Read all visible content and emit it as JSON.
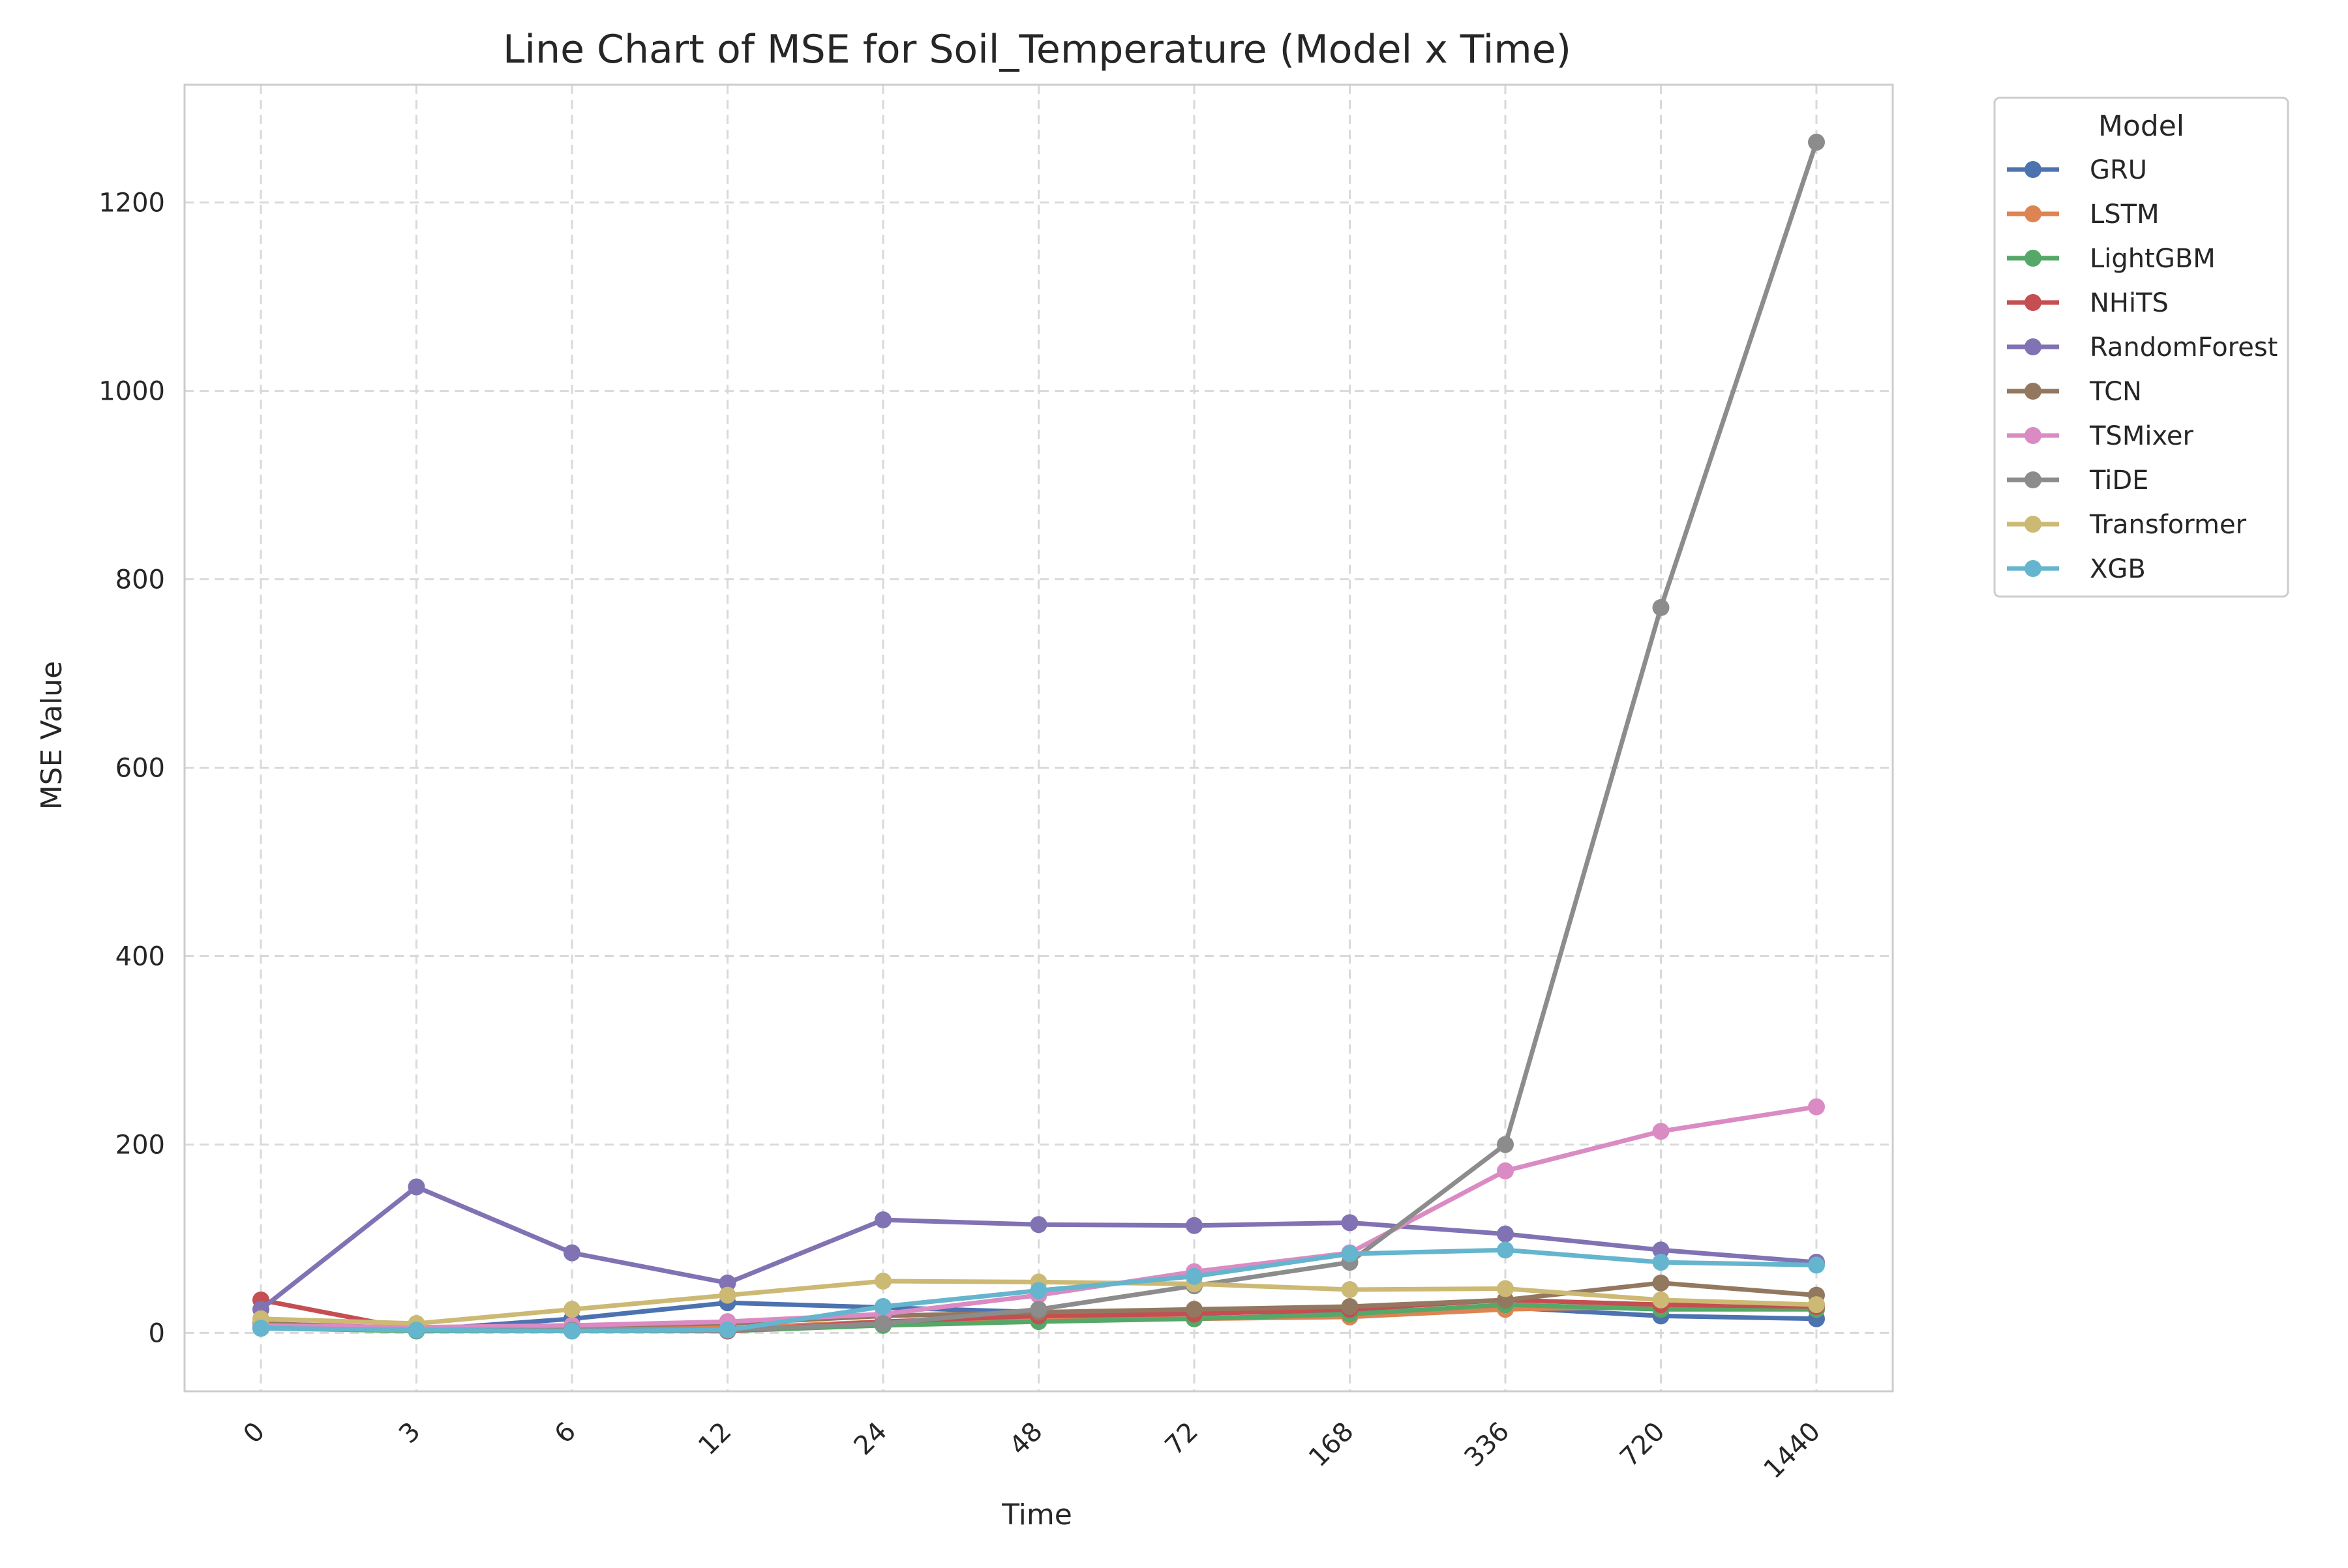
{
  "chart_data": {
    "type": "line",
    "title": "Line Chart of MSE for Soil_Temperature (Model x Time)",
    "xlabel": "Time",
    "ylabel": "MSE Value",
    "categories": [
      "0",
      "3",
      "6",
      "12",
      "24",
      "48",
      "72",
      "168",
      "336",
      "720",
      "1440"
    ],
    "ylim": [
      -62,
      1325
    ],
    "yticks": [
      0,
      200,
      400,
      600,
      800,
      1000,
      1200
    ],
    "grid": true,
    "legend": {
      "title": "Model",
      "placement": "outside-top-right"
    },
    "series": [
      {
        "name": "GRU",
        "color": "#4c72b0",
        "values": [
          8,
          3,
          15,
          32,
          27,
          22,
          22,
          22,
          27,
          18,
          15
        ]
      },
      {
        "name": "LSTM",
        "color": "#dd8452",
        "values": [
          10,
          4,
          5,
          5,
          12,
          14,
          15,
          17,
          25,
          28,
          30
        ]
      },
      {
        "name": "LightGBM",
        "color": "#55a868",
        "values": [
          5,
          2,
          2,
          2,
          8,
          12,
          15,
          20,
          30,
          25,
          25
        ]
      },
      {
        "name": "NHiTS",
        "color": "#c44e52",
        "values": [
          35,
          3,
          3,
          2,
          12,
          18,
          20,
          25,
          35,
          30,
          28
        ]
      },
      {
        "name": "RandomForest",
        "color": "#8172b3",
        "values": [
          25,
          155,
          85,
          53,
          120,
          115,
          114,
          117,
          105,
          88,
          75
        ]
      },
      {
        "name": "TCN",
        "color": "#937860",
        "values": [
          10,
          5,
          8,
          10,
          18,
          22,
          25,
          28,
          35,
          53,
          40
        ]
      },
      {
        "name": "TSMixer",
        "color": "#da8bc3",
        "values": [
          8,
          6,
          8,
          12,
          20,
          40,
          65,
          85,
          172,
          214,
          240
        ]
      },
      {
        "name": "TiDE",
        "color": "#8c8c8c",
        "values": [
          5,
          3,
          3,
          3,
          10,
          25,
          50,
          75,
          200,
          770,
          1264
        ]
      },
      {
        "name": "Transformer",
        "color": "#ccb974",
        "values": [
          15,
          10,
          25,
          40,
          55,
          54,
          52,
          46,
          47,
          35,
          30
        ]
      },
      {
        "name": "XGB",
        "color": "#64b5cd",
        "values": [
          5,
          3,
          2,
          3,
          28,
          45,
          60,
          84,
          88,
          75,
          72
        ]
      }
    ]
  }
}
